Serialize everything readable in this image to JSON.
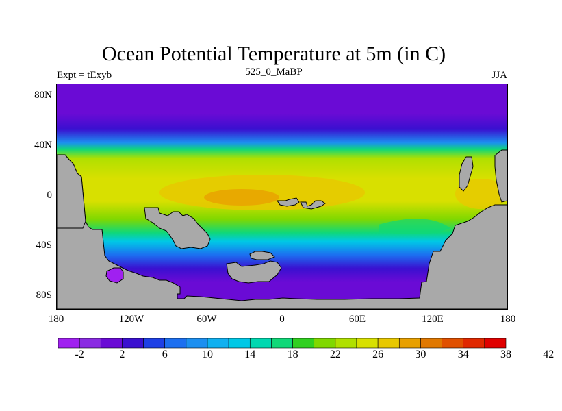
{
  "header": {
    "title": "Ocean Potential Temperature at 5m (in C)",
    "left_label": "Expt = tExyb",
    "center_label": "525_0_MaBP",
    "right_label": "JJA"
  },
  "map": {
    "lat_labels": [
      "80N",
      "40N",
      "0",
      "40S",
      "80S"
    ],
    "lon_labels": [
      "180",
      "120W",
      "60W",
      "0",
      "60E",
      "120E",
      "180"
    ],
    "land_color": "#a9a9a9"
  },
  "colorbar": {
    "colors": [
      "#a020f0",
      "#8a2be2",
      "#6a0bd5",
      "#3a10d0",
      "#1e40e6",
      "#1c6ff0",
      "#1c8ff0",
      "#10b0f0",
      "#00c8e6",
      "#00d8b0",
      "#10d878",
      "#30d020",
      "#80d800",
      "#b0e000",
      "#d8e000",
      "#e8c800",
      "#e8a000",
      "#e07800",
      "#e05000",
      "#e02800",
      "#e00000"
    ],
    "labels": [
      "-2",
      "2",
      "6",
      "10",
      "14",
      "18",
      "22",
      "26",
      "30",
      "34",
      "38",
      "42"
    ]
  }
}
